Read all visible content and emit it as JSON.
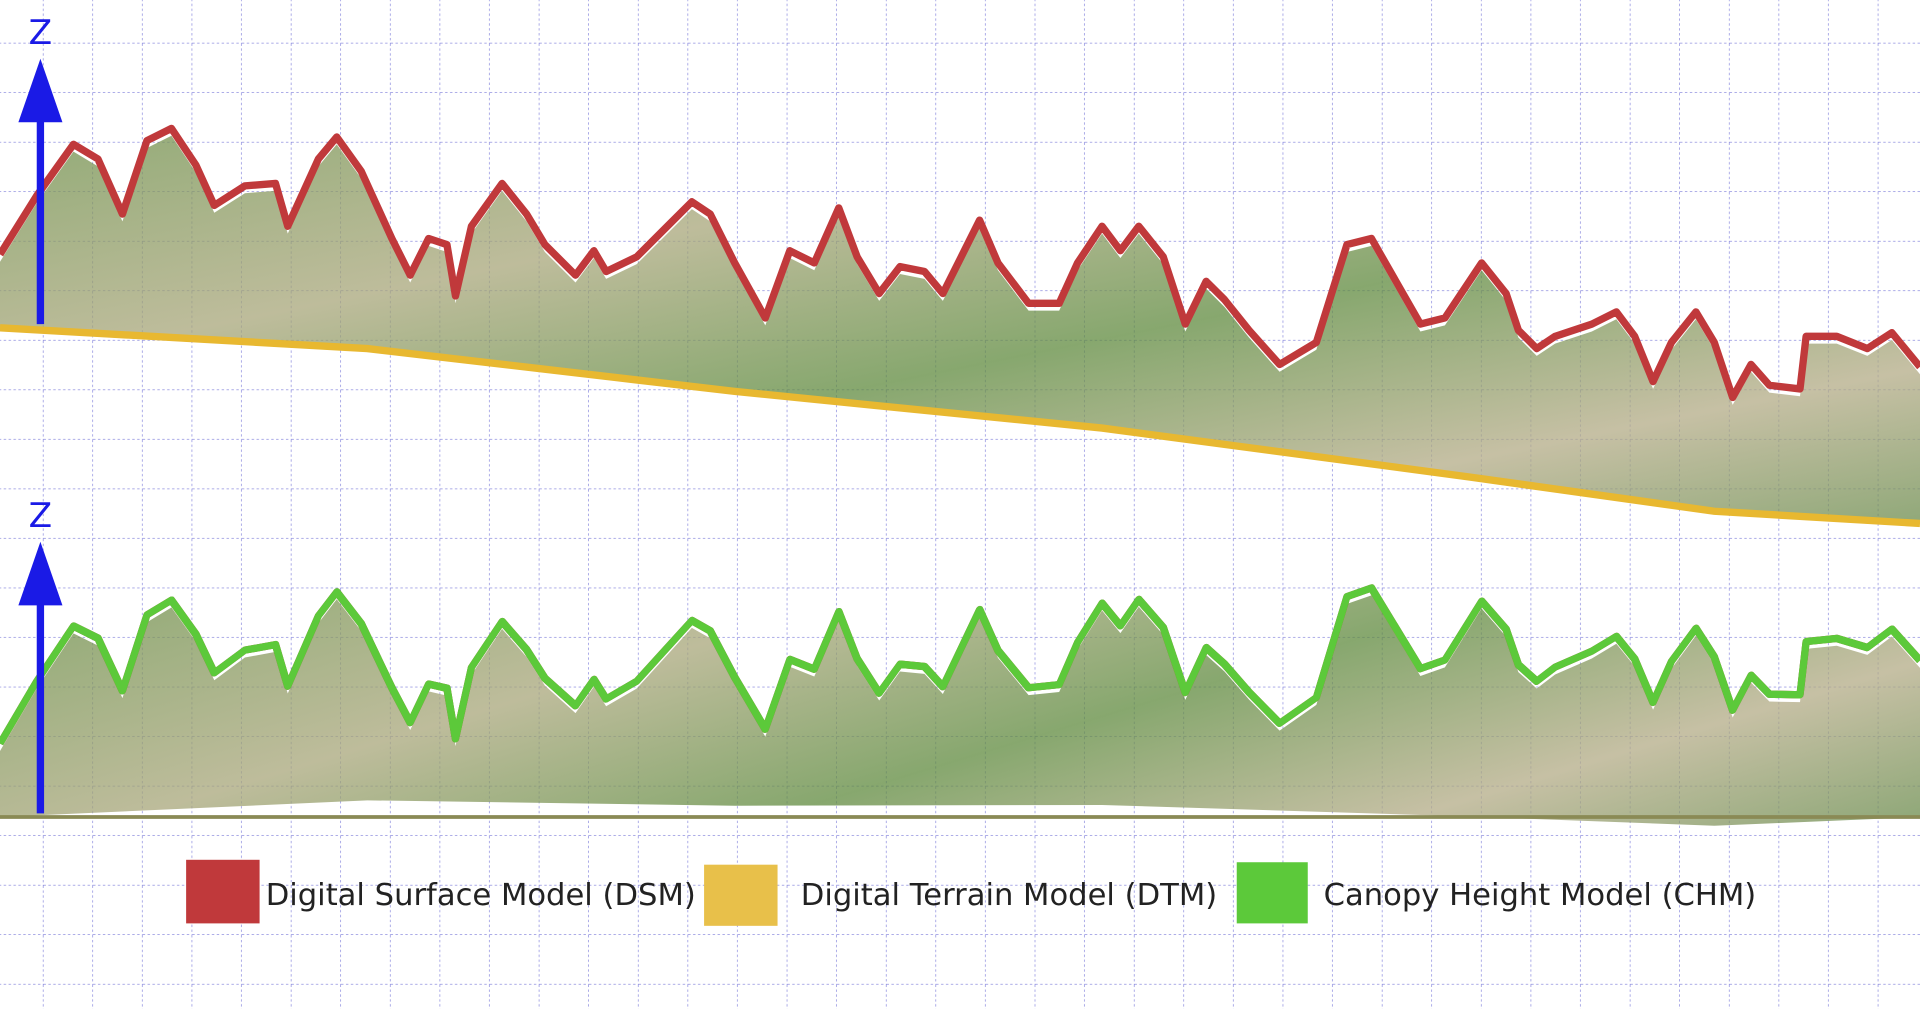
{
  "top_axis": {
    "label": "Z"
  },
  "bottom_axis": {
    "label": "Z"
  },
  "legend": {
    "items": [
      {
        "label": "Digital Surface Model (DSM)"
      },
      {
        "label": "Digital Terrain Model (DTM)"
      },
      {
        "label": "Canopy Height Model (CHM)"
      }
    ]
  }
}
